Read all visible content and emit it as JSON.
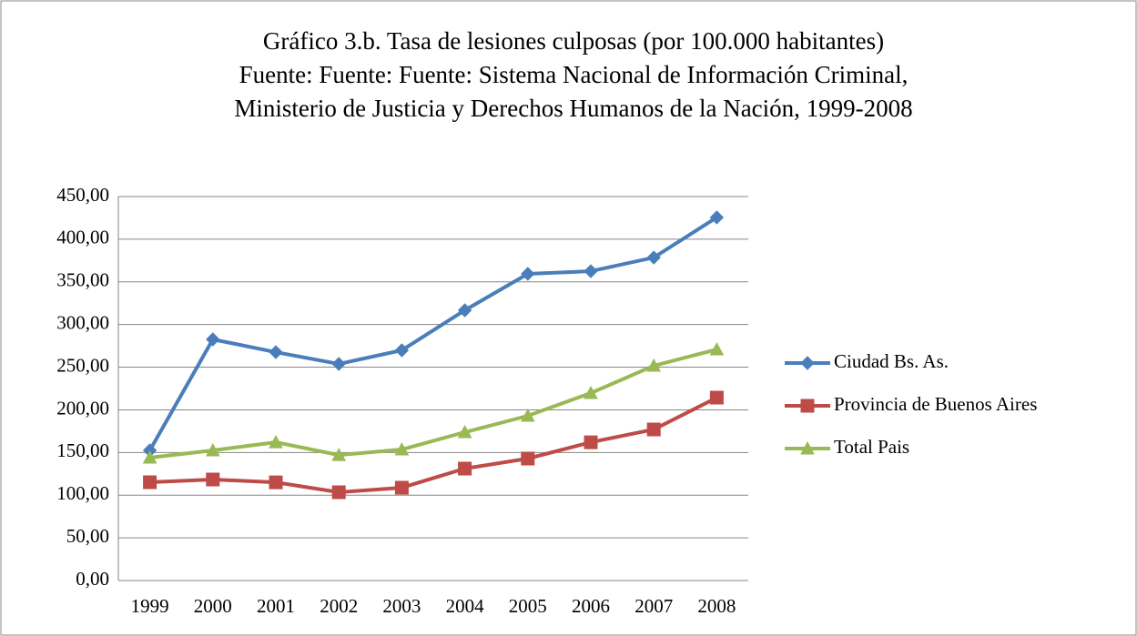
{
  "chart_data": {
    "type": "line",
    "title": [
      "Gráfico 3.b. Tasa de lesiones culposas (por 100.000 habitantes)",
      "Fuente: Fuente: Fuente: Sistema Nacional de Información Criminal,",
      "Ministerio de Justicia y Derechos Humanos de la Nación, 1999-2008"
    ],
    "categories": [
      "1999",
      "2000",
      "2001",
      "2002",
      "2003",
      "2004",
      "2005",
      "2006",
      "2007",
      "2008"
    ],
    "series": [
      {
        "name": "Ciudad Bs. As.",
        "color": "#4a7ebb",
        "marker": "diamond",
        "values": [
          152.5,
          282.6,
          267.6,
          253.8,
          269.8,
          316.7,
          359.4,
          362.5,
          378.5,
          425.5
        ]
      },
      {
        "name": "Provincia de Buenos Aires",
        "color": "#be4b48",
        "marker": "square",
        "values": [
          115.2,
          118.4,
          115,
          103.4,
          108.8,
          131.2,
          142.9,
          162,
          177,
          214.3
        ]
      },
      {
        "name": "Total Pais",
        "color": "#98b954",
        "marker": "triangle",
        "values": [
          144,
          152.5,
          162,
          147,
          153.5,
          173.8,
          193,
          219.7,
          251.7,
          270.8
        ]
      }
    ],
    "ylim": [
      0,
      450
    ],
    "yticks": [
      {
        "value": 0,
        "label": "0,00"
      },
      {
        "value": 50,
        "label": "50,00"
      },
      {
        "value": 100,
        "label": "100,00"
      },
      {
        "value": 150,
        "label": "150,00"
      },
      {
        "value": 200,
        "label": "200,00"
      },
      {
        "value": 250,
        "label": "250,00"
      },
      {
        "value": 300,
        "label": "300,00"
      },
      {
        "value": 350,
        "label": "350,00"
      },
      {
        "value": 400,
        "label": "400,00"
      },
      {
        "value": 450,
        "label": "450,00"
      }
    ],
    "grid": true,
    "legend": "right"
  }
}
